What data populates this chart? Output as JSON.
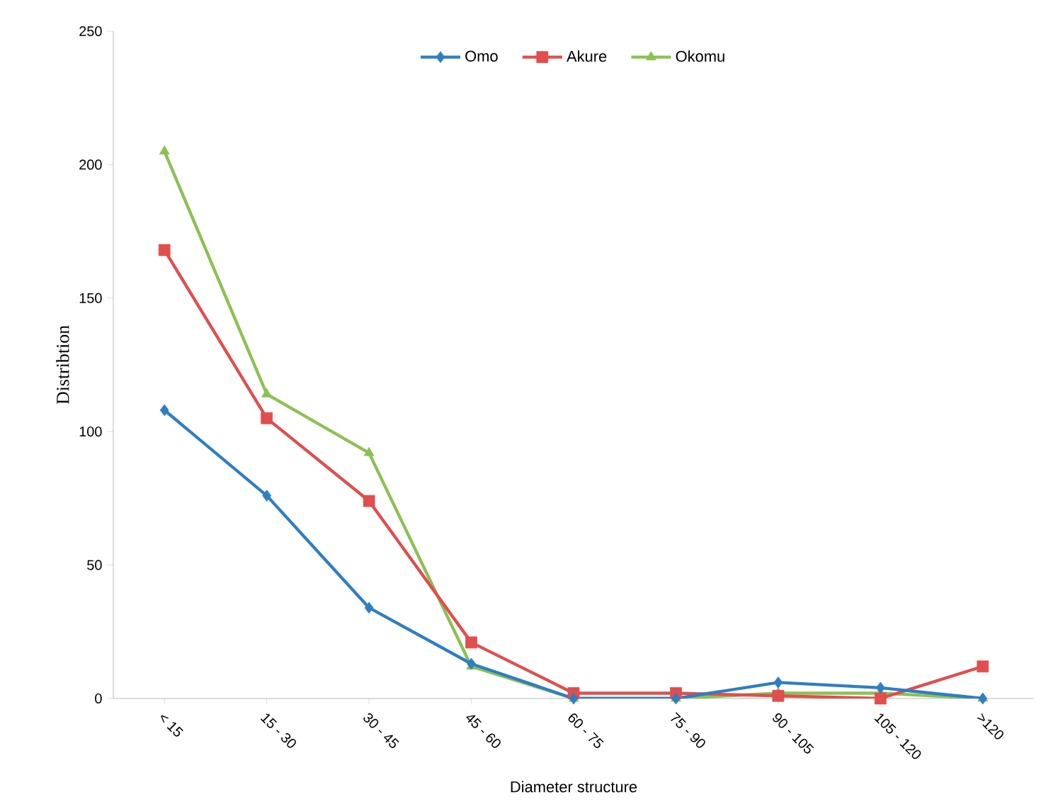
{
  "chart_data": {
    "type": "line",
    "xlabel": "Diameter structure",
    "ylabel": "Distribtion",
    "categories": [
      "< 15",
      "15 - 30",
      "30 - 45",
      "45 - 60",
      "60 - 75",
      "75 - 90",
      "90 - 105",
      "105 - 120",
      ">120"
    ],
    "series": [
      {
        "name": "Omo",
        "color": "#2e7ec3",
        "marker": "diamond",
        "values": [
          108,
          76,
          34,
          13,
          0,
          0,
          6,
          4,
          0
        ]
      },
      {
        "name": "Akure",
        "color": "#e04e4e",
        "marker": "square",
        "values": [
          168,
          105,
          74,
          21,
          2,
          2,
          1,
          0,
          12
        ]
      },
      {
        "name": "Okomu",
        "color": "#8cc152",
        "marker": "triangle",
        "values": [
          205,
          114,
          92,
          12,
          0,
          0,
          2,
          2,
          0
        ]
      }
    ],
    "ylim": [
      0,
      250
    ],
    "yticks": [
      0,
      50,
      100,
      150,
      200,
      250
    ],
    "legend": "top",
    "grid": false
  }
}
